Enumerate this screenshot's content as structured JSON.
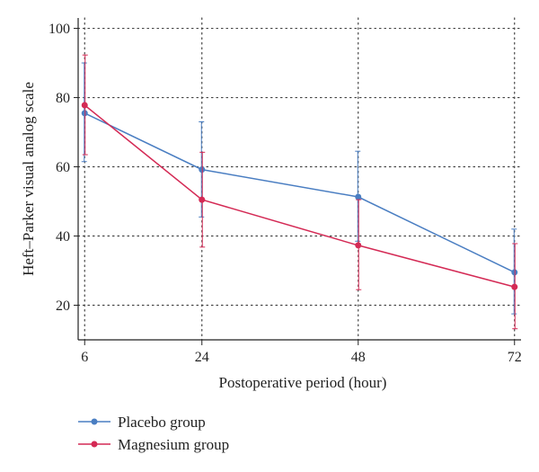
{
  "chart_data": {
    "type": "line",
    "title": "",
    "xlabel": "Postoperative period (hour)",
    "ylabel": "Heft–Parker visual analog scale",
    "x": [
      6,
      24,
      48,
      72
    ],
    "x_tick_labels": [
      "6",
      "24",
      "48",
      "72"
    ],
    "y_ticks": [
      20,
      40,
      60,
      80,
      100
    ],
    "y_tick_labels": [
      "20",
      "40",
      "60",
      "80",
      "100"
    ],
    "xlim": [
      5,
      73
    ],
    "ylim": [
      10,
      103
    ],
    "grid": true,
    "legend_position": "bottom-left",
    "series": [
      {
        "name": "Placebo group",
        "color": "#4a7ec2",
        "values": [
          75.5,
          59.2,
          51.3,
          29.5
        ],
        "err_low": [
          61.5,
          45.5,
          38.5,
          17.5
        ],
        "err_high": [
          90,
          73,
          64.5,
          42
        ]
      },
      {
        "name": "Magnesium group",
        "color": "#d42a55",
        "values": [
          77.8,
          50.5,
          37.3,
          25.3
        ],
        "err_low": [
          63.5,
          36.8,
          24.5,
          13.2
        ],
        "err_high": [
          92.3,
          64.2,
          50.5,
          37.8
        ]
      }
    ]
  }
}
